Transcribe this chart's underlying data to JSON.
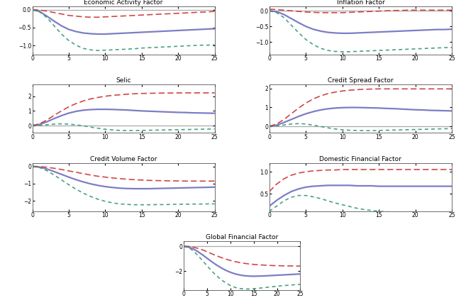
{
  "panels": [
    {
      "title": "Economic Activity Factor",
      "xlim": [
        0,
        25
      ],
      "ylim": [
        -1.25,
        0.1
      ],
      "yticks": [
        0.0,
        -0.5,
        -1.0
      ],
      "xticks": [
        0,
        5,
        10,
        15,
        20,
        25
      ],
      "hline": 0.0,
      "lines": {
        "blue": [
          0,
          -0.05,
          -0.18,
          -0.32,
          -0.45,
          -0.55,
          -0.61,
          -0.65,
          -0.67,
          -0.68,
          -0.68,
          -0.67,
          -0.66,
          -0.65,
          -0.64,
          -0.63,
          -0.62,
          -0.61,
          -0.6,
          -0.59,
          -0.58,
          -0.57,
          -0.56,
          -0.55,
          -0.54,
          -0.53
        ],
        "red": [
          0,
          -0.01,
          -0.04,
          -0.08,
          -0.12,
          -0.16,
          -0.18,
          -0.2,
          -0.21,
          -0.21,
          -0.2,
          -0.19,
          -0.18,
          -0.17,
          -0.16,
          -0.15,
          -0.14,
          -0.13,
          -0.12,
          -0.11,
          -0.1,
          -0.09,
          -0.08,
          -0.07,
          -0.06,
          -0.05
        ],
        "green": [
          0,
          -0.06,
          -0.22,
          -0.45,
          -0.68,
          -0.86,
          -0.99,
          -1.08,
          -1.12,
          -1.14,
          -1.13,
          -1.12,
          -1.11,
          -1.1,
          -1.09,
          -1.07,
          -1.06,
          -1.05,
          -1.04,
          -1.03,
          -1.02,
          -1.01,
          -1.0,
          -0.99,
          -0.99,
          -0.98
        ]
      }
    },
    {
      "title": "Inflation Factor",
      "xlim": [
        0,
        25
      ],
      "ylim": [
        -1.4,
        0.15
      ],
      "yticks": [
        0.0,
        -0.5,
        -1.0
      ],
      "xticks": [
        0,
        5,
        10,
        15,
        20,
        25
      ],
      "hline": 0.0,
      "lines": {
        "blue": [
          0,
          -0.03,
          -0.12,
          -0.25,
          -0.38,
          -0.5,
          -0.59,
          -0.65,
          -0.69,
          -0.71,
          -0.72,
          -0.72,
          -0.71,
          -0.7,
          -0.69,
          -0.68,
          -0.67,
          -0.66,
          -0.65,
          -0.64,
          -0.63,
          -0.62,
          -0.61,
          -0.6,
          -0.6,
          -0.59
        ],
        "red": [
          0.05,
          0.04,
          0.02,
          0.0,
          -0.02,
          -0.04,
          -0.05,
          -0.06,
          -0.06,
          -0.06,
          -0.06,
          -0.05,
          -0.04,
          -0.03,
          -0.02,
          -0.01,
          0.0,
          0.01,
          0.01,
          0.02,
          0.02,
          0.02,
          0.02,
          0.02,
          0.02,
          0.02
        ],
        "green": [
          0,
          -0.06,
          -0.22,
          -0.46,
          -0.7,
          -0.92,
          -1.08,
          -1.2,
          -1.27,
          -1.3,
          -1.31,
          -1.31,
          -1.3,
          -1.29,
          -1.28,
          -1.27,
          -1.26,
          -1.25,
          -1.24,
          -1.23,
          -1.22,
          -1.21,
          -1.2,
          -1.19,
          -1.18,
          -1.18
        ]
      }
    },
    {
      "title": "Selic",
      "xlim": [
        0,
        25
      ],
      "ylim": [
        -0.5,
        2.8
      ],
      "yticks": [
        0,
        1,
        2
      ],
      "xticks": [
        0,
        5,
        10,
        15,
        20,
        25
      ],
      "hline": 0.0,
      "lines": {
        "blue": [
          0,
          0.08,
          0.26,
          0.48,
          0.68,
          0.85,
          0.97,
          1.05,
          1.09,
          1.11,
          1.11,
          1.1,
          1.08,
          1.06,
          1.03,
          1.0,
          0.98,
          0.96,
          0.94,
          0.92,
          0.9,
          0.89,
          0.87,
          0.86,
          0.85,
          0.84
        ],
        "red": [
          0,
          0.12,
          0.38,
          0.7,
          1.0,
          1.28,
          1.5,
          1.68,
          1.82,
          1.92,
          2.0,
          2.06,
          2.1,
          2.14,
          2.17,
          2.19,
          2.2,
          2.21,
          2.22,
          2.22,
          2.23,
          2.23,
          2.23,
          2.23,
          2.23,
          2.23
        ],
        "green": [
          0,
          0.02,
          0.06,
          0.1,
          0.12,
          0.1,
          0.05,
          -0.02,
          -0.1,
          -0.18,
          -0.25,
          -0.3,
          -0.33,
          -0.34,
          -0.34,
          -0.33,
          -0.32,
          -0.31,
          -0.3,
          -0.29,
          -0.28,
          -0.27,
          -0.26,
          -0.25,
          -0.24,
          -0.23
        ]
      }
    },
    {
      "title": "Credit Spread Factor",
      "xlim": [
        0,
        25
      ],
      "ylim": [
        -0.35,
        2.2
      ],
      "yticks": [
        0,
        1,
        2
      ],
      "xticks": [
        0,
        5,
        10,
        15,
        20,
        25
      ],
      "hline": 0.0,
      "lines": {
        "blue": [
          0,
          0.06,
          0.2,
          0.36,
          0.52,
          0.66,
          0.77,
          0.86,
          0.92,
          0.96,
          0.98,
          0.99,
          0.99,
          0.98,
          0.97,
          0.96,
          0.94,
          0.93,
          0.91,
          0.89,
          0.87,
          0.86,
          0.84,
          0.83,
          0.82,
          0.81
        ],
        "red": [
          0,
          0.12,
          0.36,
          0.66,
          0.96,
          1.22,
          1.44,
          1.6,
          1.72,
          1.8,
          1.86,
          1.9,
          1.93,
          1.95,
          1.96,
          1.97,
          1.97,
          1.97,
          1.97,
          1.97,
          1.97,
          1.97,
          1.97,
          1.97,
          1.97,
          1.97
        ],
        "green": [
          0,
          0.02,
          0.07,
          0.12,
          0.14,
          0.12,
          0.06,
          -0.01,
          -0.08,
          -0.14,
          -0.18,
          -0.21,
          -0.22,
          -0.23,
          -0.23,
          -0.22,
          -0.21,
          -0.2,
          -0.19,
          -0.18,
          -0.17,
          -0.16,
          -0.15,
          -0.14,
          -0.13,
          -0.12
        ]
      }
    },
    {
      "title": "Credit Volume Factor",
      "xlim": [
        0,
        25
      ],
      "ylim": [
        -2.6,
        0.2
      ],
      "yticks": [
        0,
        -1,
        -2
      ],
      "xticks": [
        0,
        5,
        10,
        15,
        20,
        25
      ],
      "hline": null,
      "lines": {
        "blue": [
          0,
          -0.04,
          -0.15,
          -0.3,
          -0.46,
          -0.62,
          -0.77,
          -0.9,
          -1.01,
          -1.1,
          -1.17,
          -1.22,
          -1.26,
          -1.28,
          -1.29,
          -1.29,
          -1.29,
          -1.28,
          -1.27,
          -1.26,
          -1.25,
          -1.24,
          -1.23,
          -1.22,
          -1.21,
          -1.2
        ],
        "red": [
          0,
          -0.01,
          -0.05,
          -0.11,
          -0.18,
          -0.26,
          -0.34,
          -0.42,
          -0.5,
          -0.57,
          -0.62,
          -0.67,
          -0.71,
          -0.74,
          -0.77,
          -0.79,
          -0.81,
          -0.82,
          -0.83,
          -0.84,
          -0.84,
          -0.85,
          -0.85,
          -0.85,
          -0.85,
          -0.85
        ],
        "green": [
          0,
          -0.07,
          -0.25,
          -0.5,
          -0.78,
          -1.06,
          -1.32,
          -1.55,
          -1.74,
          -1.9,
          -2.02,
          -2.11,
          -2.17,
          -2.2,
          -2.22,
          -2.22,
          -2.22,
          -2.21,
          -2.21,
          -2.2,
          -2.19,
          -2.19,
          -2.18,
          -2.18,
          -2.17,
          -2.17
        ]
      }
    },
    {
      "title": "Domestic Financial Factor",
      "xlim": [
        0,
        25
      ],
      "ylim": [
        0.1,
        1.2
      ],
      "yticks": [
        0.5,
        1.0
      ],
      "xticks": [
        0,
        5,
        10,
        15,
        20,
        25
      ],
      "hline": null,
      "lines": {
        "blue": [
          0.22,
          0.35,
          0.46,
          0.55,
          0.61,
          0.65,
          0.67,
          0.68,
          0.69,
          0.69,
          0.69,
          0.69,
          0.68,
          0.68,
          0.68,
          0.67,
          0.67,
          0.67,
          0.67,
          0.67,
          0.67,
          0.67,
          0.67,
          0.67,
          0.67,
          0.67
        ],
        "red": [
          0.55,
          0.72,
          0.84,
          0.92,
          0.97,
          1.0,
          1.02,
          1.03,
          1.04,
          1.04,
          1.05,
          1.05,
          1.05,
          1.05,
          1.05,
          1.05,
          1.05,
          1.05,
          1.05,
          1.05,
          1.05,
          1.05,
          1.05,
          1.05,
          1.05,
          1.05
        ],
        "green": [
          0.1,
          0.22,
          0.34,
          0.42,
          0.46,
          0.46,
          0.43,
          0.39,
          0.34,
          0.29,
          0.25,
          0.21,
          0.17,
          0.14,
          0.12,
          0.1,
          0.09,
          0.08,
          0.07,
          0.06,
          0.06,
          0.05,
          0.05,
          0.05,
          0.04,
          0.04
        ]
      }
    },
    {
      "title": "Global Financial Factor",
      "xlim": [
        0,
        25
      ],
      "ylim": [
        -3.5,
        0.4
      ],
      "yticks": [
        0,
        -2
      ],
      "xticks": [
        0,
        5,
        10,
        15,
        20,
        25
      ],
      "hline": 0.0,
      "lines": {
        "blue": [
          0,
          -0.06,
          -0.2,
          -0.42,
          -0.68,
          -0.96,
          -1.24,
          -1.5,
          -1.73,
          -1.93,
          -2.09,
          -2.22,
          -2.31,
          -2.37,
          -2.4,
          -2.41,
          -2.4,
          -2.39,
          -2.37,
          -2.35,
          -2.33,
          -2.31,
          -2.29,
          -2.27,
          -2.25,
          -2.23
        ],
        "red": [
          0,
          -0.01,
          -0.07,
          -0.16,
          -0.28,
          -0.44,
          -0.6,
          -0.76,
          -0.9,
          -1.03,
          -1.14,
          -1.23,
          -1.31,
          -1.37,
          -1.42,
          -1.46,
          -1.49,
          -1.51,
          -1.53,
          -1.55,
          -1.56,
          -1.57,
          -1.58,
          -1.58,
          -1.59,
          -1.59
        ],
        "green": [
          0,
          -0.1,
          -0.35,
          -0.72,
          -1.14,
          -1.57,
          -1.99,
          -2.36,
          -2.68,
          -2.95,
          -3.16,
          -3.31,
          -3.4,
          -3.44,
          -3.44,
          -3.42,
          -3.38,
          -3.34,
          -3.3,
          -3.26,
          -3.22,
          -3.18,
          -3.15,
          -3.12,
          -3.09,
          -3.07
        ]
      }
    }
  ],
  "blue_color": "#6666bb",
  "red_color": "#cc3333",
  "green_color": "#339977",
  "hline_color": "#aaaaaa",
  "bg_color": "#ffffff",
  "title_fontsize": 6.5,
  "tick_fontsize": 5.5
}
